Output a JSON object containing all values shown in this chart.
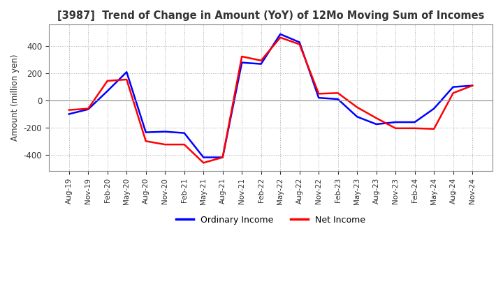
{
  "title": "[3987]  Trend of Change in Amount (YoY) of 12Mo Moving Sum of Incomes",
  "ylabel": "Amount (million yen)",
  "ylim": [
    -520,
    560
  ],
  "yticks": [
    -400,
    -200,
    0,
    200,
    400
  ],
  "background_color": "#ffffff",
  "grid_color": "#aaaaaa",
  "ordinary_income_color": "#0000ff",
  "net_income_color": "#ff0000",
  "x_labels": [
    "Aug-19",
    "Nov-19",
    "Feb-20",
    "May-20",
    "Aug-20",
    "Nov-20",
    "Feb-21",
    "May-21",
    "Aug-21",
    "Nov-21",
    "Feb-22",
    "May-22",
    "Aug-22",
    "Nov-22",
    "Feb-23",
    "May-23",
    "Aug-23",
    "Nov-23",
    "Feb-24",
    "May-24",
    "Aug-24",
    "Nov-24"
  ],
  "ordinary_income": [
    -100,
    -65,
    70,
    210,
    -235,
    -230,
    -240,
    -420,
    -420,
    280,
    270,
    490,
    430,
    20,
    10,
    -120,
    -175,
    -160,
    -160,
    -60,
    100,
    110
  ],
  "net_income": [
    -70,
    -60,
    145,
    155,
    -300,
    -325,
    -325,
    -460,
    -420,
    325,
    295,
    465,
    415,
    50,
    55,
    -50,
    -130,
    -205,
    -205,
    -210,
    55,
    110
  ]
}
